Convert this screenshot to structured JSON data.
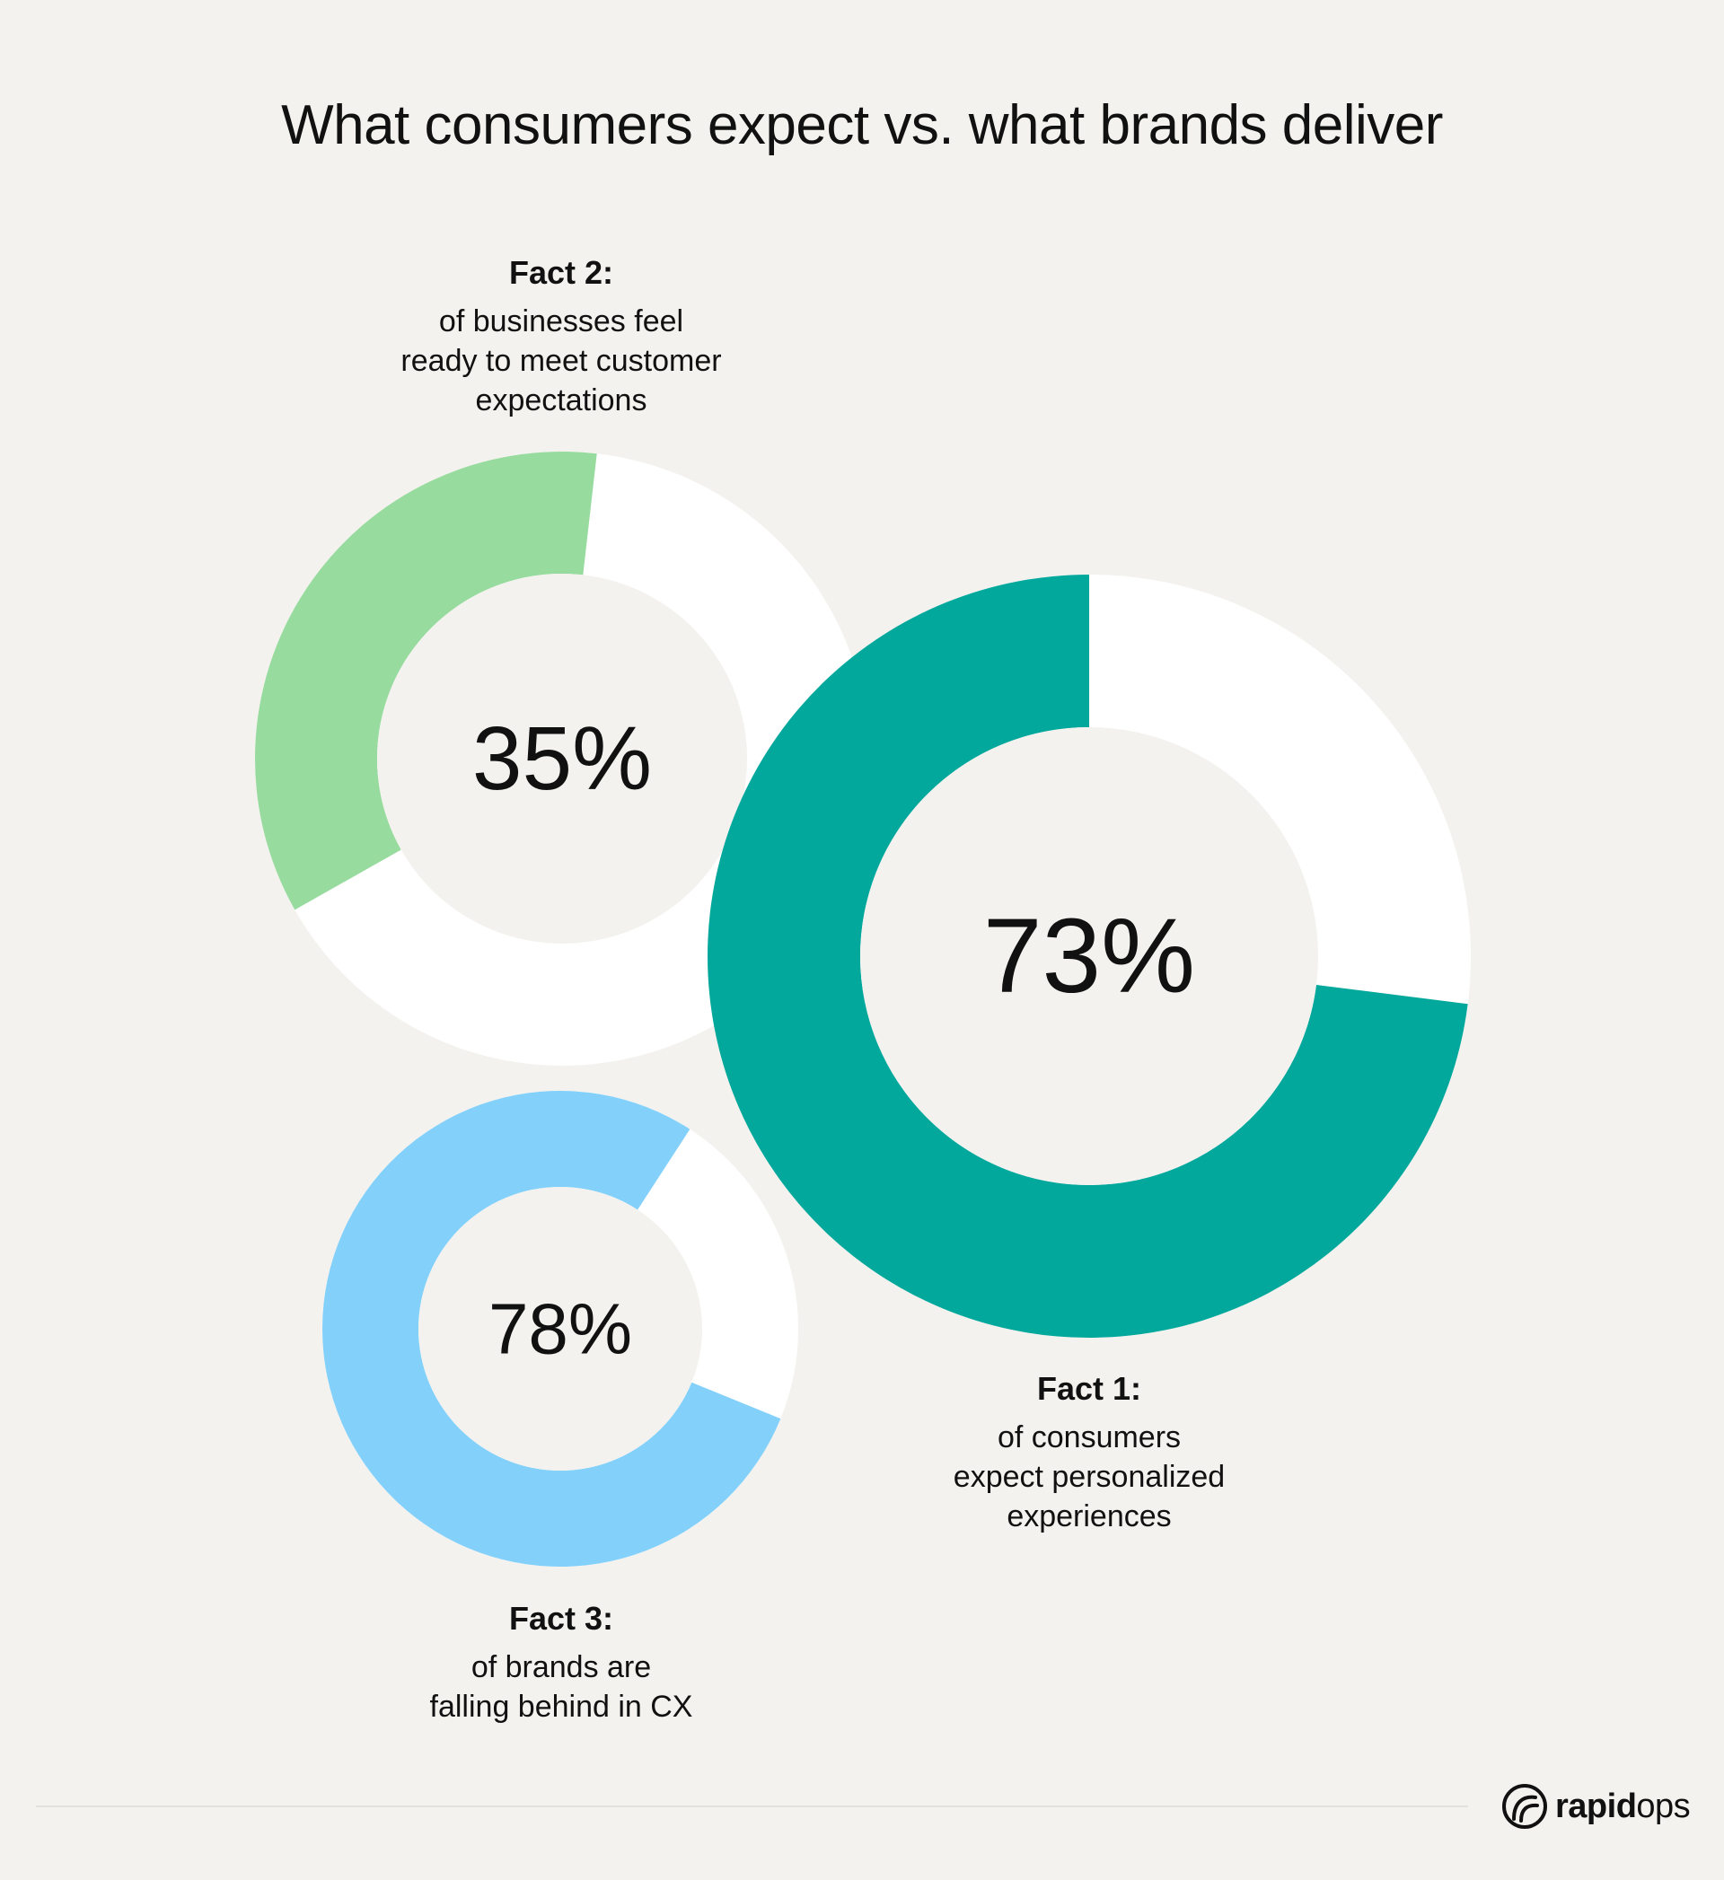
{
  "title": "What consumers expect vs. what brands deliver",
  "chart_data": [
    {
      "type": "pie",
      "variant": "donut",
      "center_label": "35%",
      "values": [
        35,
        65
      ],
      "colors": [
        "#98db9f",
        "#ffffff"
      ],
      "fact_title": "Fact 2:",
      "fact_description": "of businesses feel\nready to meet customer\nexpectations"
    },
    {
      "type": "pie",
      "variant": "donut",
      "center_label": "73%",
      "values": [
        73,
        27
      ],
      "colors": [
        "#02a89c",
        "#ffffff"
      ],
      "fact_title": "Fact 1:",
      "fact_description": "of consumers\nexpect personalized\nexperiences"
    },
    {
      "type": "pie",
      "variant": "donut",
      "center_label": "78%",
      "values": [
        78,
        22
      ],
      "colors": [
        "#83d1fb",
        "#ffffff"
      ],
      "fact_title": "Fact 3:",
      "fact_description": "of brands are\nfalling behind in CX"
    }
  ],
  "brand": {
    "name_bold": "rapid",
    "name_light": "ops",
    "icon": "rapidops-logo-icon"
  }
}
